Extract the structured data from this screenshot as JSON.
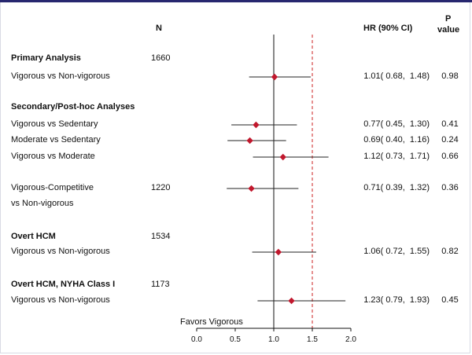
{
  "headers": {
    "n": "N",
    "hr": "HR (90% CI)",
    "p_line1": "P",
    "p_line2": "value"
  },
  "favors_label": "Favors Vigorous",
  "colors": {
    "marker": "#c0182d",
    "reference_line": "#cc2222",
    "axis": "#111111",
    "border": "#27276f"
  },
  "rows": [
    {
      "label": "Primary Analysis",
      "bold": true,
      "n": "1660",
      "hr": "",
      "p": ""
    },
    {
      "label": "Vigorous vs Non-vigorous",
      "bold": false,
      "n": "",
      "hr": "1.01( 0.68,  1.48)",
      "p": "0.98"
    },
    {
      "label": "Secondary/Post-hoc Analyses",
      "bold": true,
      "n": "",
      "hr": "",
      "p": ""
    },
    {
      "label": "Vigorous vs Sedentary",
      "bold": false,
      "n": "",
      "hr": "0.77( 0.45,  1.30)",
      "p": "0.41"
    },
    {
      "label": "Moderate vs Sedentary",
      "bold": false,
      "n": "",
      "hr": "0.69( 0.40,  1.16)",
      "p": "0.24"
    },
    {
      "label": "Vigorous vs Moderate",
      "bold": false,
      "n": "",
      "hr": "1.12( 0.73,  1.71)",
      "p": "0.66"
    },
    {
      "label": "Vigorous-Competitive",
      "bold": false,
      "n": "1220",
      "hr": "0.71( 0.39,  1.32)",
      "p": "0.36"
    },
    {
      "label": "vs Non-vigorous",
      "bold": false,
      "n": "",
      "hr": "",
      "p": ""
    },
    {
      "label": "Overt HCM",
      "bold": true,
      "n": "1534",
      "hr": "",
      "p": ""
    },
    {
      "label": "Vigorous vs Non-vigorous",
      "bold": false,
      "n": "",
      "hr": "1.06( 0.72,  1.55)",
      "p": "0.82"
    },
    {
      "label": "Overt HCM, NYHA Class I",
      "bold": true,
      "n": "1173",
      "hr": "",
      "p": ""
    },
    {
      "label": "Vigorous vs Non-vigorous",
      "bold": false,
      "n": "",
      "hr": "1.23( 0.79,  1.93)",
      "p": "0.45"
    }
  ],
  "chart_data": {
    "type": "forest",
    "xlim": [
      0.0,
      2.0
    ],
    "ticks": [
      0.0,
      0.5,
      1.0,
      1.5,
      2.0
    ],
    "tick_labels": [
      "0.0",
      "0.5",
      "1.0",
      "1.5",
      "2.0"
    ],
    "null_line": 1.0,
    "reference_line": 1.5,
    "points": [
      {
        "row": 1,
        "hr": 1.01,
        "lo": 0.68,
        "hi": 1.48
      },
      {
        "row": 3,
        "hr": 0.77,
        "lo": 0.45,
        "hi": 1.3
      },
      {
        "row": 4,
        "hr": 0.69,
        "lo": 0.4,
        "hi": 1.16
      },
      {
        "row": 5,
        "hr": 1.12,
        "lo": 0.73,
        "hi": 1.71
      },
      {
        "row": 6,
        "hr": 0.71,
        "lo": 0.39,
        "hi": 1.32
      },
      {
        "row": 9,
        "hr": 1.06,
        "lo": 0.72,
        "hi": 1.55
      },
      {
        "row": 11,
        "hr": 1.23,
        "lo": 0.79,
        "hi": 1.93
      }
    ]
  }
}
